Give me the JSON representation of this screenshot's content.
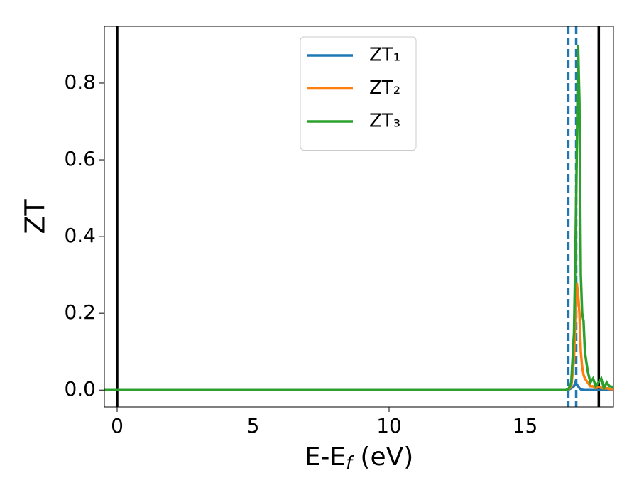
{
  "chart_data": {
    "type": "line",
    "xlabel": [
      "E-E",
      "f",
      " (eV)"
    ],
    "ylabel": "ZT",
    "x": [
      -0.47,
      16.5,
      16.6,
      16.7,
      16.8,
      16.85,
      16.9,
      16.95,
      17.0,
      17.05,
      17.1,
      17.15,
      17.2,
      17.3,
      17.4,
      17.5,
      17.6,
      17.7,
      17.8,
      17.9,
      18.0,
      18.1,
      18.25
    ],
    "series": [
      {
        "name": "ZT₁",
        "color": "#1f77b4",
        "values": [
          0,
          0,
          0.001,
          0.005,
          0.01,
          0.02,
          0.015,
          0.01,
          0.005,
          0.002,
          0.001,
          0,
          0,
          0,
          0,
          0,
          0,
          0,
          0,
          0,
          0,
          0,
          0
        ]
      },
      {
        "name": "ZT₂",
        "color": "#ff7f0e",
        "values": [
          0,
          0,
          0.002,
          0.01,
          0.08,
          0.2,
          0.28,
          0.25,
          0.2,
          0.1,
          0.06,
          0.04,
          0.03,
          0.02,
          0.01,
          0.01,
          0.005,
          0.008,
          0.006,
          0.004,
          0.005,
          0.003,
          0.002
        ]
      },
      {
        "name": "ZT₃",
        "color": "#2ca02c",
        "values": [
          0,
          0,
          0.003,
          0.02,
          0.15,
          0.35,
          0.6,
          0.9,
          0.75,
          0.3,
          0.2,
          0.18,
          0.1,
          0.05,
          0.02,
          0.03,
          0.01,
          0.02,
          0.03,
          0.005,
          0.02,
          0.01,
          0.008
        ]
      }
    ],
    "vlines": [
      {
        "x": 0,
        "color": "#000000",
        "style": "solid"
      },
      {
        "x": 17.71,
        "color": "#000000",
        "style": "solid"
      },
      {
        "x": 16.59,
        "color": "#1f77b4",
        "style": "dashed"
      },
      {
        "x": 16.88,
        "color": "#1f77b4",
        "style": "dashed"
      }
    ],
    "xlim": [
      -0.47,
      18.25
    ],
    "ylim": [
      -0.044,
      0.948
    ],
    "xticks": [
      0,
      5,
      10,
      15
    ],
    "yticks": [
      {
        "value": 0,
        "label": "0.0"
      },
      0.2,
      0.4,
      0.6,
      0.8
    ],
    "legend": "upper center",
    "grid": false
  }
}
